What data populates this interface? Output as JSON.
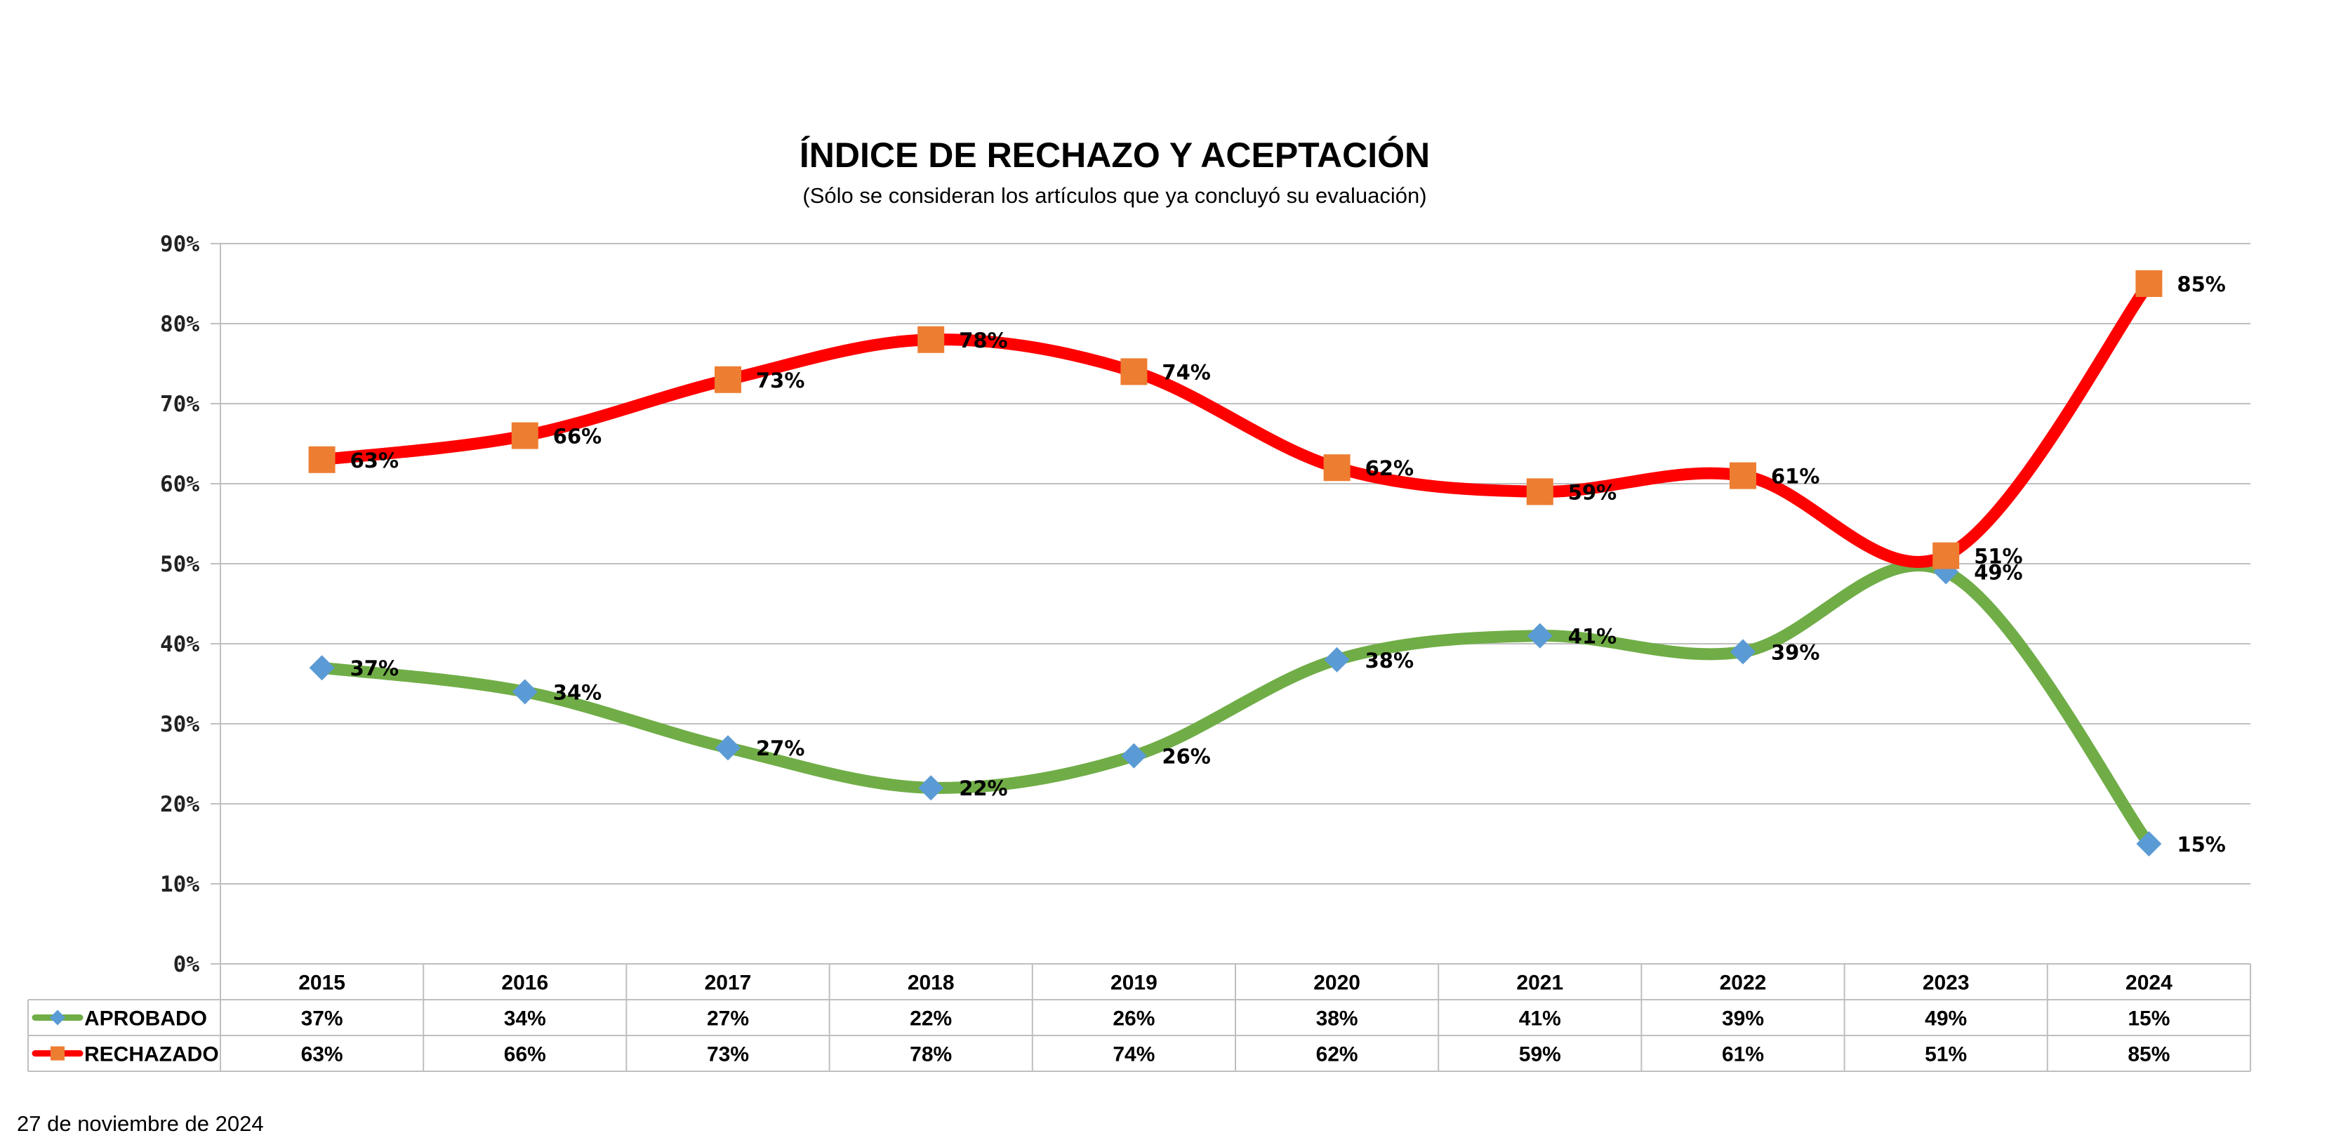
{
  "chart_data": {
    "type": "line",
    "title": "ÍNDICE DE RECHAZO Y ACEPTACIÓN",
    "subtitle": "(Sólo se consideran los artículos que ya concluyó su evaluación)",
    "categories": [
      "2015",
      "2016",
      "2017",
      "2018",
      "2019",
      "2020",
      "2021",
      "2022",
      "2023",
      "2024"
    ],
    "series": [
      {
        "name": "APROBADO",
        "values": [
          37,
          34,
          27,
          22,
          26,
          38,
          41,
          39,
          49,
          15
        ],
        "labels": [
          "37%",
          "34%",
          "27%",
          "22%",
          "26%",
          "38%",
          "41%",
          "39%",
          "49%",
          "15%"
        ],
        "line_color": "#70ad47",
        "marker_color": "#5b9bd5",
        "marker": "diamond"
      },
      {
        "name": "RECHAZADO",
        "values": [
          63,
          66,
          73,
          78,
          74,
          62,
          59,
          61,
          51,
          85
        ],
        "labels": [
          "63%",
          "66%",
          "73%",
          "78%",
          "74%",
          "62%",
          "59%",
          "61%",
          "51%",
          "85%"
        ],
        "line_color": "#ff0000",
        "marker_color": "#ed7d31",
        "marker": "square"
      }
    ],
    "ylim": [
      0,
      90
    ],
    "yticks": [
      "0%",
      "10%",
      "20%",
      "30%",
      "40%",
      "50%",
      "60%",
      "70%",
      "80%",
      "90%"
    ],
    "grid": true,
    "smooth": true,
    "legend": "data-table"
  },
  "footer": {
    "date": "27 de noviembre de 2024"
  }
}
